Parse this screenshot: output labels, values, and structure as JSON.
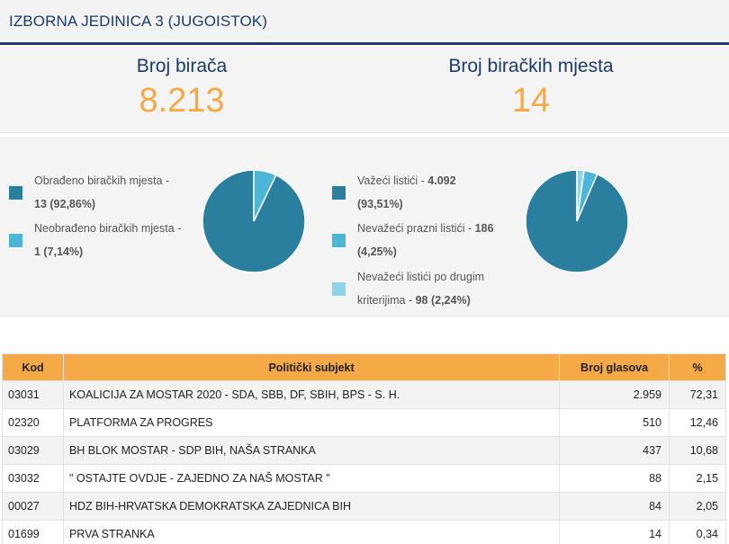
{
  "header": {
    "title": "IZBORNA JEDINICA 3 (JUGOISTOK)"
  },
  "stats": {
    "voters_label": "Broj birača",
    "voters_value": "8.213",
    "places_label": "Broj biračkih mjesta",
    "places_value": "14"
  },
  "colors": {
    "dark": "#2b7f9e",
    "mid": "#4db6d6",
    "light": "#8fd3e8",
    "accent": "#f5a947",
    "navy": "#1b3a6b"
  },
  "chart_data": [
    {
      "type": "pie",
      "legend": [
        {
          "label": "Obrađeno biračkih mjesta -",
          "value": "13 (92,86%)"
        },
        {
          "label": "Neobrađeno biračkih mjesta -",
          "value": "1 (7,14%)"
        }
      ],
      "values": [
        92.86,
        7.14
      ],
      "colors": [
        "#2b7f9e",
        "#4db6d6"
      ]
    },
    {
      "type": "pie",
      "legend": [
        {
          "label": "Važeći listići -",
          "value": "4.092",
          "pct": "(93,51%)"
        },
        {
          "label": "Nevažeći prazni listići -",
          "value": "186",
          "pct": "(4,25%)"
        },
        {
          "label": "Nevažeći listići po drugim",
          "label2": "kriterijima -",
          "value": "98 (2,24%)"
        }
      ],
      "values": [
        93.51,
        4.25,
        2.24
      ],
      "colors": [
        "#2b7f9e",
        "#4db6d6",
        "#8fd3e8"
      ]
    }
  ],
  "table": {
    "headers": [
      "Kod",
      "Politički subjekt",
      "Broj glasova",
      "%"
    ],
    "rows": [
      [
        "03031",
        "KOALICIJA ZA MOSTAR 2020 - SDA, SBB, DF, SBIH, BPS - S. H.",
        "2.959",
        "72,31"
      ],
      [
        "02320",
        "PLATFORMA ZA PROGRES",
        "510",
        "12,46"
      ],
      [
        "03029",
        "BH BLOK MOSTAR - SDP BIH, NAŠA STRANKA",
        "437",
        "10,68"
      ],
      [
        "03032",
        "\" OSTAJTE OVDJE - ZAJEDNO ZA NAŠ MOSTAR \"",
        "88",
        "2,15"
      ],
      [
        "00027",
        "HDZ BIH-HRVATSKA DEMOKRATSKA ZAJEDNICA BIH",
        "84",
        "2,05"
      ],
      [
        "01699",
        "PRVA STRANKA",
        "14",
        "0,34"
      ]
    ]
  }
}
